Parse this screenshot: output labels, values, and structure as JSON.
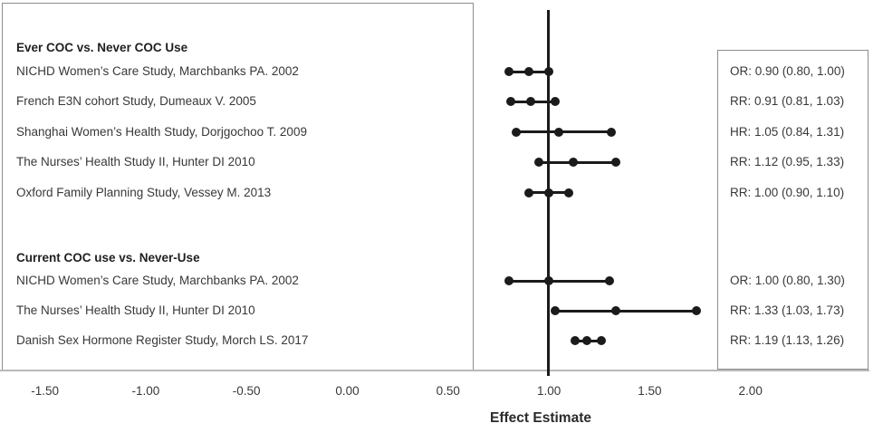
{
  "figure": {
    "x_axis_title": "Effect Estimate"
  },
  "chart_data": {
    "type": "forest",
    "title": "",
    "xlabel": "Effect Estimate",
    "ylabel": "",
    "x_ticks": [
      -1.5,
      -1.0,
      -0.5,
      0.0,
      0.5,
      1.0,
      1.5,
      2.0
    ],
    "x_tick_labels": [
      "-1.50",
      "-1.00",
      "-0.50",
      "0.00",
      "0.50",
      "1.00",
      "1.50",
      "2.00"
    ],
    "xlim": [
      -1.72,
      2.66
    ],
    "reference_line": 1.0,
    "grid": false,
    "legend": false,
    "marker_color": "#1b1b1b",
    "groups": [
      {
        "label": "Ever COC vs. Never COC Use",
        "studies": [
          {
            "label": "NICHD Women’s Care Study, Marchbanks PA. 2002",
            "measure": "OR",
            "estimate": 0.9,
            "ci_lower": 0.8,
            "ci_upper": 1.0,
            "estimate_text": "OR: 0.90 (0.80, 1.00)"
          },
          {
            "label": "French E3N cohort Study, Dumeaux V. 2005",
            "measure": "RR",
            "estimate": 0.91,
            "ci_lower": 0.81,
            "ci_upper": 1.03,
            "estimate_text": "RR: 0.91 (0.81, 1.03)"
          },
          {
            "label": "Shanghai Women’s Health Study, Dorjgochoo T. 2009",
            "measure": "HR",
            "estimate": 1.05,
            "ci_lower": 0.84,
            "ci_upper": 1.31,
            "estimate_text": "HR: 1.05 (0.84, 1.31)"
          },
          {
            "label": "The Nurses’ Health Study II, Hunter DI 2010",
            "measure": "RR",
            "estimate": 1.12,
            "ci_lower": 0.95,
            "ci_upper": 1.33,
            "estimate_text": "RR: 1.12 (0.95, 1.33)"
          },
          {
            "label": "Oxford Family Planning Study, Vessey M. 2013",
            "measure": "RR",
            "estimate": 1.0,
            "ci_lower": 0.9,
            "ci_upper": 1.1,
            "estimate_text": "RR: 1.00 (0.90, 1.10)"
          }
        ]
      },
      {
        "label": "Current COC use vs. Never-Use",
        "studies": [
          {
            "label": "NICHD Women’s Care Study, Marchbanks PA. 2002",
            "measure": "OR",
            "estimate": 1.0,
            "ci_lower": 0.8,
            "ci_upper": 1.3,
            "estimate_text": "OR: 1.00 (0.80, 1.30)"
          },
          {
            "label": "The Nurses’ Health Study II, Hunter DI 2010",
            "measure": "RR",
            "estimate": 1.33,
            "ci_lower": 1.03,
            "ci_upper": 1.73,
            "estimate_text": "RR: 1.33 (1.03, 1.73)"
          },
          {
            "label": "Danish Sex Hormone Register Study, Morch LS. 2017",
            "measure": "RR",
            "estimate": 1.19,
            "ci_lower": 1.13,
            "ci_upper": 1.26,
            "estimate_text": "RR: 1.19 (1.13, 1.26)"
          }
        ]
      }
    ]
  }
}
